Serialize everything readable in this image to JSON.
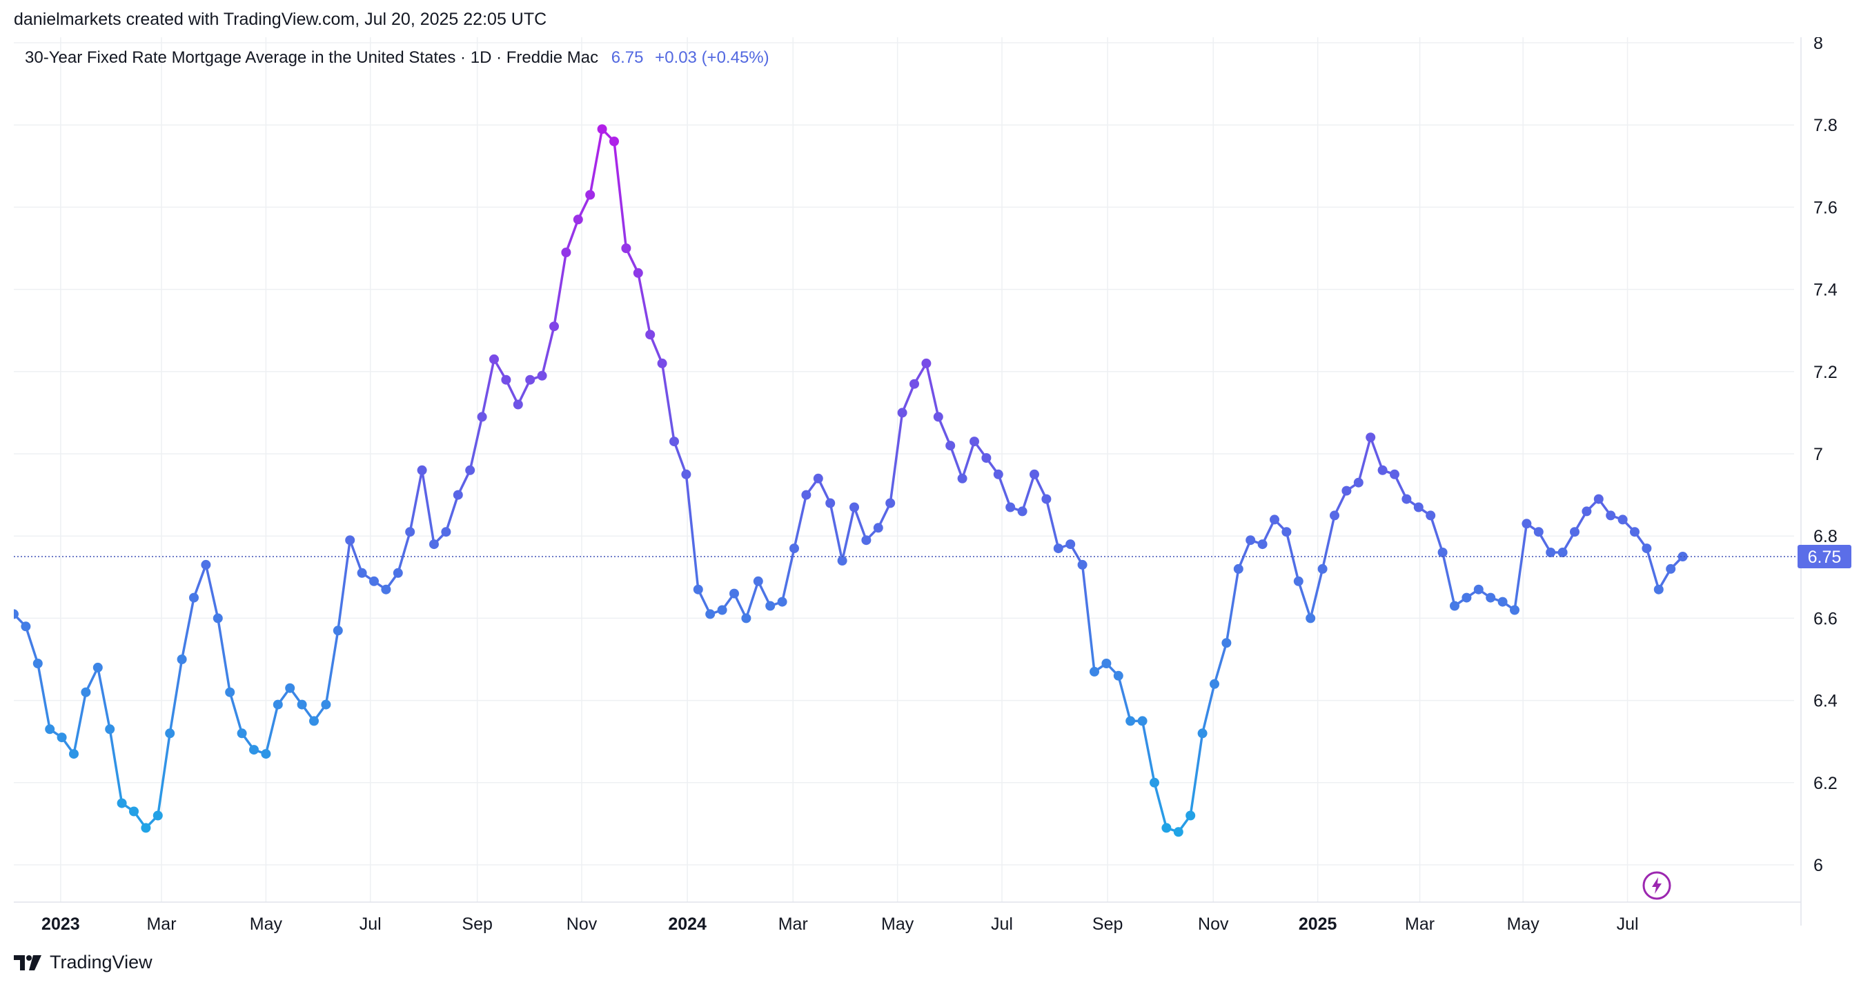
{
  "header": {
    "credit": "danielmarkets created with TradingView.com, Jul 20, 2025 22:05 UTC"
  },
  "legend": {
    "symbol": "30-Year Fixed Rate Mortgage Average in the United States · 1D · Freddie Mac",
    "last": "6.75",
    "change": "+0.03 (+0.45%)"
  },
  "footer": {
    "brand": "TradingView"
  },
  "colors": {
    "low": "#1ea6e6",
    "mid": "#5b63e6",
    "high": "#b21ee8",
    "grid": "#eef0f3",
    "axis_text": "#131722",
    "price_tag": "#5b6ee8"
  },
  "chart_data": {
    "type": "line",
    "title": "30-Year Fixed Rate Mortgage Average in the United States",
    "xlabel": "",
    "ylabel": "",
    "ylim": [
      5.9,
      8
    ],
    "yticks": [
      6,
      6.2,
      6.4,
      6.6,
      6.8,
      7,
      7.2,
      7.4,
      7.6,
      7.8,
      8
    ],
    "ytick_labels": [
      "6",
      "6.2",
      "6.4",
      "6.6",
      "6.8",
      "7",
      "7.2",
      "7.4",
      "7.6",
      "7.8",
      "8"
    ],
    "x_unit": "weeks since 2022-11-17",
    "xlim": [
      0,
      148
    ],
    "xticks": [
      {
        "label": "2023",
        "x": 3.9,
        "bold": true
      },
      {
        "label": "Mar",
        "x": 12.3,
        "bold": false
      },
      {
        "label": "May",
        "x": 21.0,
        "bold": false
      },
      {
        "label": "Jul",
        "x": 29.7,
        "bold": false
      },
      {
        "label": "Sep",
        "x": 38.6,
        "bold": false
      },
      {
        "label": "Nov",
        "x": 47.3,
        "bold": false
      },
      {
        "label": "2024",
        "x": 56.1,
        "bold": true
      },
      {
        "label": "Mar",
        "x": 64.9,
        "bold": false
      },
      {
        "label": "May",
        "x": 73.6,
        "bold": false
      },
      {
        "label": "Jul",
        "x": 82.3,
        "bold": false
      },
      {
        "label": "Sep",
        "x": 91.1,
        "bold": false
      },
      {
        "label": "Nov",
        "x": 99.9,
        "bold": false
      },
      {
        "label": "2025",
        "x": 108.6,
        "bold": true
      },
      {
        "label": "Mar",
        "x": 117.1,
        "bold": false
      },
      {
        "label": "May",
        "x": 125.7,
        "bold": false
      },
      {
        "label": "Jul",
        "x": 134.4,
        "bold": false
      }
    ],
    "series": [
      {
        "name": "30-Year Fixed Rate Mortgage Average",
        "values": [
          6.61,
          6.58,
          6.49,
          6.33,
          6.31,
          6.27,
          6.42,
          6.48,
          6.33,
          6.15,
          6.13,
          6.09,
          6.12,
          6.32,
          6.5,
          6.65,
          6.73,
          6.6,
          6.42,
          6.32,
          6.28,
          6.27,
          6.39,
          6.43,
          6.39,
          6.35,
          6.39,
          6.57,
          6.79,
          6.71,
          6.69,
          6.67,
          6.71,
          6.81,
          6.96,
          6.78,
          6.81,
          6.9,
          6.96,
          7.09,
          7.23,
          7.18,
          7.12,
          7.18,
          7.19,
          7.31,
          7.49,
          7.57,
          7.63,
          7.79,
          7.76,
          7.5,
          7.44,
          7.29,
          7.22,
          7.03,
          6.95,
          6.67,
          6.61,
          6.62,
          6.66,
          6.6,
          6.69,
          6.63,
          6.64,
          6.77,
          6.9,
          6.94,
          6.88,
          6.74,
          6.87,
          6.79,
          6.82,
          6.88,
          7.1,
          7.17,
          7.22,
          7.09,
          7.02,
          6.94,
          7.03,
          6.99,
          6.95,
          6.87,
          6.86,
          6.95,
          6.89,
          6.77,
          6.78,
          6.73,
          6.47,
          6.49,
          6.46,
          6.35,
          6.35,
          6.2,
          6.09,
          6.08,
          6.12,
          6.32,
          6.44,
          6.54,
          6.72,
          6.79,
          6.78,
          6.84,
          6.81,
          6.69,
          6.6,
          6.72,
          6.85,
          6.91,
          6.93,
          7.04,
          6.96,
          6.95,
          6.89,
          6.87,
          6.85,
          6.76,
          6.63,
          6.65,
          6.67,
          6.65,
          6.64,
          6.62,
          6.83,
          6.81,
          6.76,
          6.76,
          6.81,
          6.86,
          6.89,
          6.85,
          6.84,
          6.81,
          6.77,
          6.67,
          6.72,
          6.75
        ]
      }
    ],
    "last_value_label": "6.75"
  }
}
